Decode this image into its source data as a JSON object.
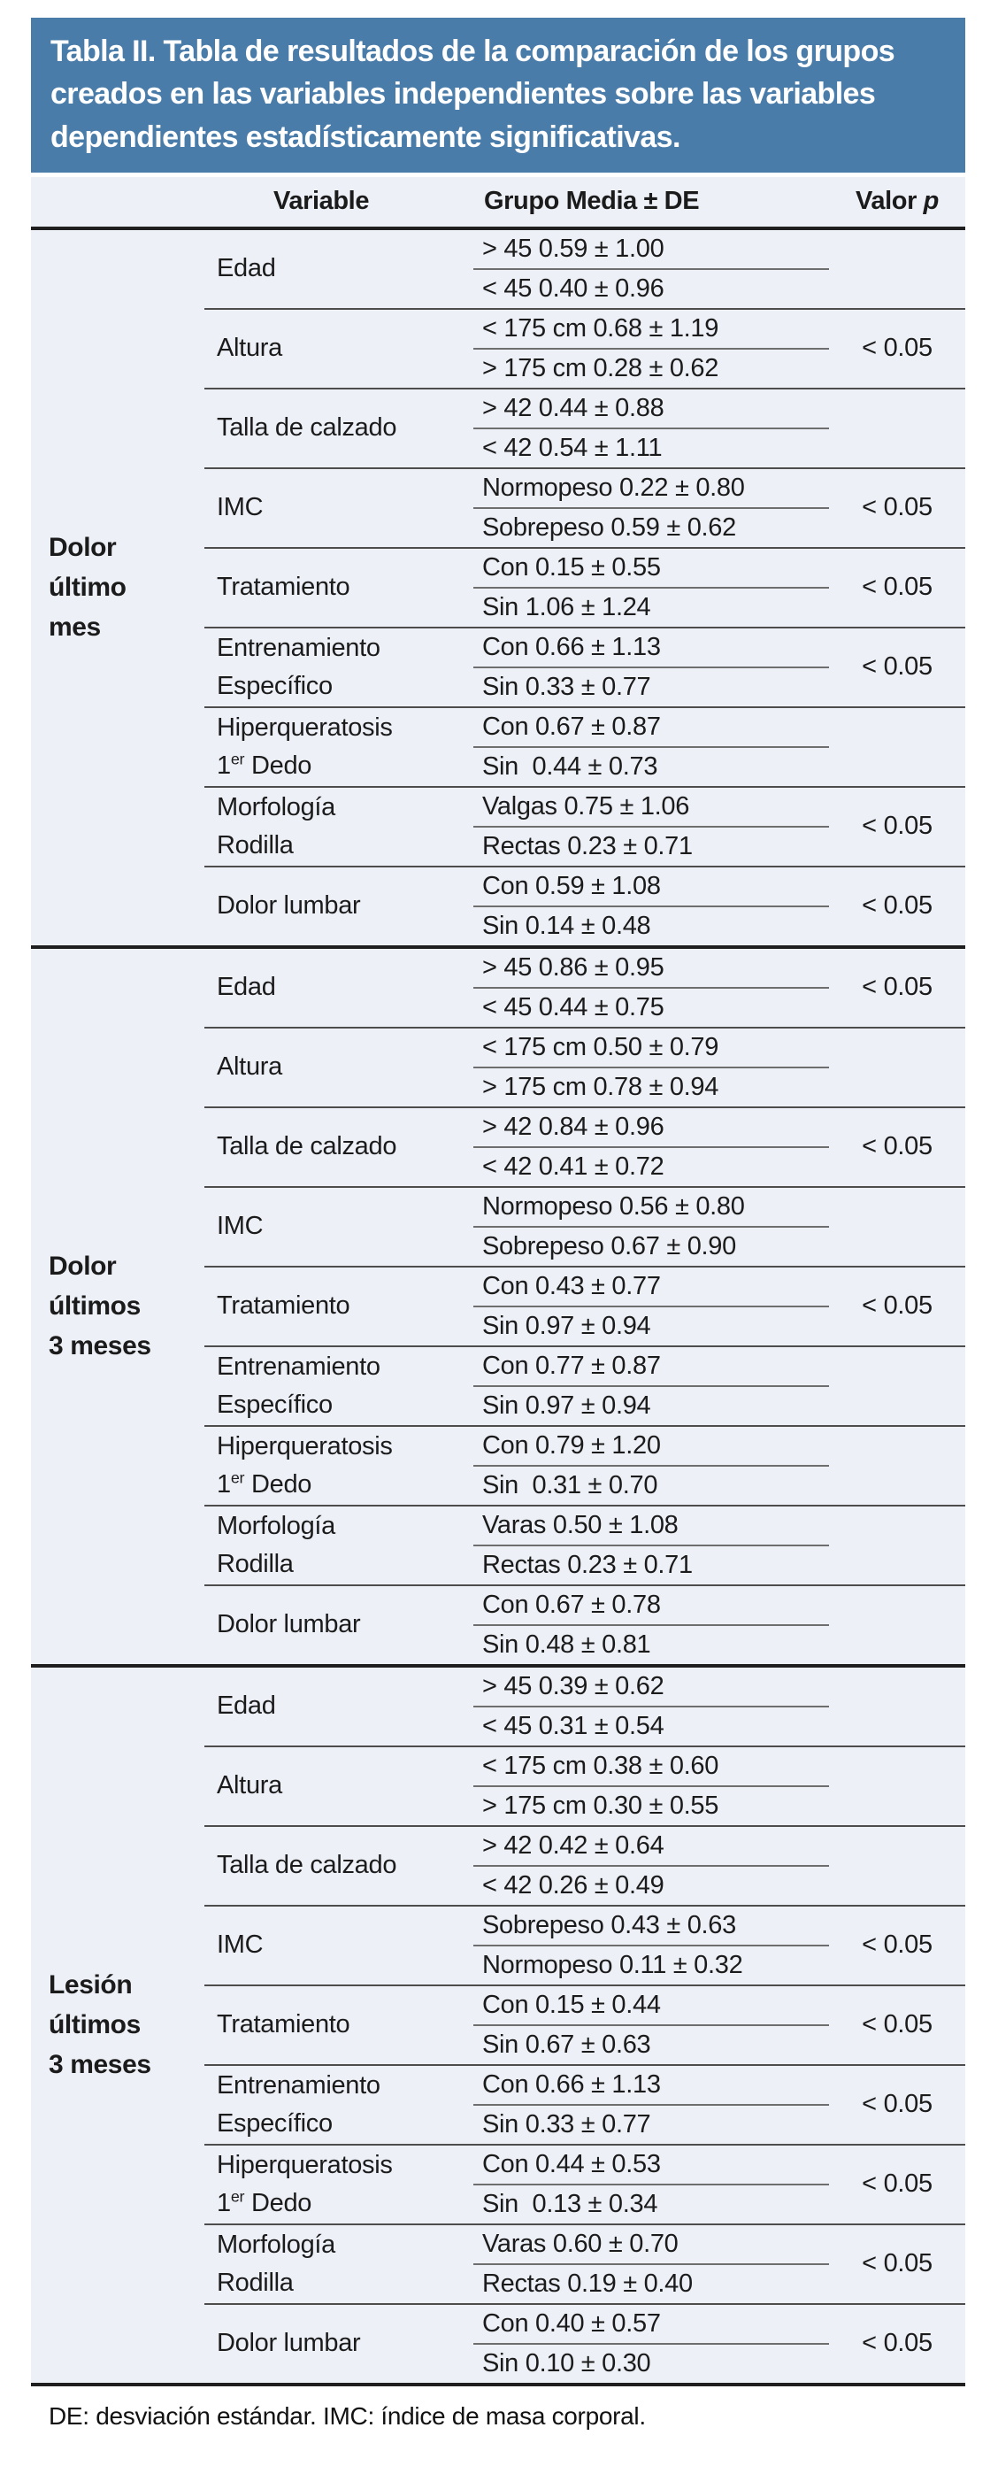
{
  "title": "Tabla II. Tabla de resultados de la comparación de los grupos creados en las variables independientes sobre las variables dependientes estadísticamente significativas.",
  "columns": {
    "variable": "Variable",
    "grupo": "Grupo Media ± DE",
    "valor_prefix": "Valor ",
    "valor_p": "p"
  },
  "footnote": "DE: desviación estándar. IMC: índice de masa corporal.",
  "colors": {
    "header_blue": "#4A7CAA",
    "body_bg": "#EDF0F7",
    "section_line": "#1F1F1F",
    "block_line": "#4D4D4D",
    "subrow_line": "#6E6E6E"
  },
  "sections": [
    {
      "label_lines": [
        "Dolor",
        "último",
        "mes"
      ],
      "rows": [
        {
          "variable_lines": [
            "Edad"
          ],
          "group_top": "> 45 0.59 ± 1.00",
          "group_bottom": "< 45 0.40 ± 0.96",
          "p_value": ""
        },
        {
          "variable_lines": [
            "Altura"
          ],
          "group_top": "< 175 cm 0.68 ± 1.19",
          "group_bottom": "> 175 cm 0.28 ± 0.62",
          "p_value": "< 0.05"
        },
        {
          "variable_lines": [
            "Talla de calzado"
          ],
          "group_top": "> 42 0.44 ± 0.88",
          "group_bottom": "< 42 0.54 ± 1.11",
          "p_value": ""
        },
        {
          "variable_lines": [
            "IMC"
          ],
          "group_top": "Normopeso 0.22 ± 0.80",
          "group_bottom": "Sobrepeso 0.59 ± 0.62",
          "p_value": "< 0.05"
        },
        {
          "variable_lines": [
            "Tratamiento"
          ],
          "group_top": "Con 0.15 ± 0.55",
          "group_bottom": "Sin 1.06 ± 1.24",
          "p_value": "< 0.05"
        },
        {
          "variable_lines": [
            "Entrenamiento",
            "Específico"
          ],
          "group_top": "Con 0.66 ± 1.13",
          "group_bottom": "Sin 0.33 ± 0.77",
          "p_value": "< 0.05"
        },
        {
          "variable_lines": [
            "Hiperqueratosis",
            "1{er} Dedo"
          ],
          "group_top": "Con 0.67 ± 0.87",
          "group_bottom": "Sin  0.44 ± 0.73",
          "p_value": ""
        },
        {
          "variable_lines": [
            "Morfología",
            "Rodilla"
          ],
          "group_top": "Valgas 0.75 ± 1.06",
          "group_bottom": "Rectas 0.23 ± 0.71",
          "p_value": "< 0.05"
        },
        {
          "variable_lines": [
            "Dolor lumbar"
          ],
          "group_top": "Con 0.59 ± 1.08",
          "group_bottom": "Sin 0.14 ± 0.48",
          "p_value": "< 0.05"
        }
      ]
    },
    {
      "label_lines": [
        "Dolor",
        "últimos",
        "3 meses"
      ],
      "rows": [
        {
          "variable_lines": [
            "Edad"
          ],
          "group_top": "> 45 0.86 ± 0.95",
          "group_bottom": "< 45 0.44 ± 0.75",
          "p_value": "< 0.05"
        },
        {
          "variable_lines": [
            "Altura"
          ],
          "group_top": "< 175 cm 0.50 ± 0.79",
          "group_bottom": "> 175 cm 0.78 ± 0.94",
          "p_value": ""
        },
        {
          "variable_lines": [
            "Talla de calzado"
          ],
          "group_top": "> 42 0.84 ± 0.96",
          "group_bottom": "< 42 0.41 ± 0.72",
          "p_value": "< 0.05"
        },
        {
          "variable_lines": [
            "IMC"
          ],
          "group_top": "Normopeso 0.56 ± 0.80",
          "group_bottom": "Sobrepeso 0.67 ± 0.90",
          "p_value": ""
        },
        {
          "variable_lines": [
            "Tratamiento"
          ],
          "group_top": "Con 0.43 ± 0.77",
          "group_bottom": "Sin 0.97 ± 0.94",
          "p_value": "< 0.05"
        },
        {
          "variable_lines": [
            "Entrenamiento",
            "Específico"
          ],
          "group_top": "Con 0.77 ± 0.87",
          "group_bottom": "Sin 0.97 ± 0.94",
          "p_value": ""
        },
        {
          "variable_lines": [
            "Hiperqueratosis",
            "1{er} Dedo"
          ],
          "group_top": "Con 0.79 ± 1.20",
          "group_bottom": "Sin  0.31 ± 0.70",
          "p_value": ""
        },
        {
          "variable_lines": [
            "Morfología",
            "Rodilla"
          ],
          "group_top": "Varas 0.50 ± 1.08",
          "group_bottom": "Rectas 0.23 ± 0.71",
          "p_value": ""
        },
        {
          "variable_lines": [
            "Dolor lumbar"
          ],
          "group_top": "Con 0.67 ± 0.78",
          "group_bottom": "Sin 0.48 ± 0.81",
          "p_value": ""
        }
      ]
    },
    {
      "label_lines": [
        "Lesión",
        "últimos",
        "3 meses"
      ],
      "rows": [
        {
          "variable_lines": [
            "Edad"
          ],
          "group_top": "> 45 0.39 ± 0.62",
          "group_bottom": "< 45 0.31 ± 0.54",
          "p_value": ""
        },
        {
          "variable_lines": [
            "Altura"
          ],
          "group_top": "< 175 cm 0.38 ± 0.60",
          "group_bottom": "> 175 cm 0.30 ± 0.55",
          "p_value": ""
        },
        {
          "variable_lines": [
            "Talla de calzado"
          ],
          "group_top": "> 42 0.42 ± 0.64",
          "group_bottom": "< 42 0.26 ± 0.49",
          "p_value": ""
        },
        {
          "variable_lines": [
            "IMC"
          ],
          "group_top": "Sobrepeso 0.43 ± 0.63",
          "group_bottom": "Normopeso 0.11 ± 0.32",
          "p_value": "< 0.05"
        },
        {
          "variable_lines": [
            "Tratamiento"
          ],
          "group_top": "Con 0.15 ± 0.44",
          "group_bottom": "Sin 0.67 ± 0.63",
          "p_value": "< 0.05"
        },
        {
          "variable_lines": [
            "Entrenamiento",
            "Específico"
          ],
          "group_top": "Con 0.66 ± 1.13",
          "group_bottom": "Sin 0.33 ± 0.77",
          "p_value": "< 0.05"
        },
        {
          "variable_lines": [
            "Hiperqueratosis",
            "1{er} Dedo"
          ],
          "group_top": "Con 0.44 ± 0.53",
          "group_bottom": "Sin  0.13 ± 0.34",
          "p_value": "< 0.05"
        },
        {
          "variable_lines": [
            "Morfología",
            "Rodilla"
          ],
          "group_top": "Varas 0.60 ± 0.70",
          "group_bottom": "Rectas 0.19 ± 0.40",
          "p_value": "< 0.05"
        },
        {
          "variable_lines": [
            "Dolor lumbar"
          ],
          "group_top": "Con 0.40 ± 0.57",
          "group_bottom": "Sin 0.10 ± 0.30",
          "p_value": "< 0.05"
        }
      ]
    }
  ]
}
